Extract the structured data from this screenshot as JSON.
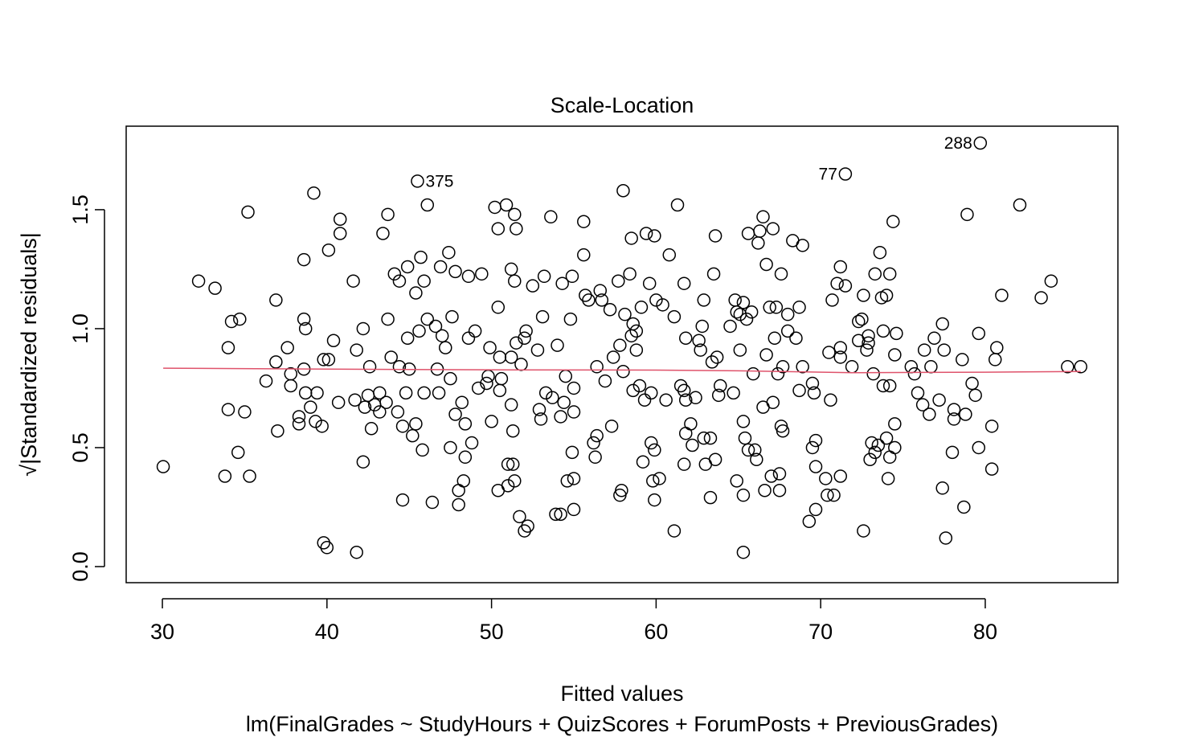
{
  "chart_data": {
    "type": "scatter",
    "title": "Scale-Location",
    "xlabel": "Fitted values",
    "ylabel": "√|Standardized residuals|",
    "subtitle": "lm(FinalGrades ~ StudyHours + QuizScores + ForumPosts + PreviousGrades)",
    "xlim": [
      27.8,
      88.06
    ],
    "ylim": [
      -0.0676,
      1.851
    ],
    "xticks": [
      30,
      40,
      50,
      60,
      70,
      80
    ],
    "yticks": [
      {
        "value": 0,
        "label": "0.0"
      },
      0.5,
      {
        "value": 1,
        "label": "1.0"
      },
      1.5
    ],
    "color": "#000000",
    "x": [
      30.05,
      32.2,
      33.2,
      33.8,
      34.0,
      34.0,
      34.2,
      34.6,
      34.7,
      35.0,
      35.2,
      35.3,
      36.3,
      36.9,
      37.0,
      36.9,
      37.6,
      37.8,
      37.8,
      38.3,
      38.3,
      38.6,
      38.6,
      38.7,
      38.6,
      38.7,
      39.0,
      39.2,
      39.3,
      39.4,
      39.7,
      39.8,
      39.8,
      40.0,
      40.1,
      40.1,
      40.4,
      40.8,
      40.8,
      40.7,
      41.6,
      41.8,
      41.8,
      41.7,
      42.2,
      42.2,
      42.3,
      42.6,
      42.5,
      42.7,
      42.9,
      43.2,
      43.2,
      43.4,
      43.6,
      43.7,
      43.7,
      43.9,
      44.1,
      44.4,
      44.3,
      44.4,
      44.6,
      44.6,
      44.8,
      44.9,
      44.9,
      45.0,
      45.2,
      45.4,
      45.5,
      45.4,
      45.6,
      45.7,
      45.8,
      45.9,
      46.1,
      46.1,
      45.9,
      46.6,
      46.4,
      46.7,
      46.8,
      46.9,
      47.0,
      47.2,
      47.4,
      47.5,
      47.5,
      47.6,
      47.8,
      47.8,
      48.0,
      48.0,
      48.2,
      48.3,
      48.4,
      48.4,
      48.6,
      48.6,
      48.8,
      49.0,
      49.2,
      49.4,
      49.7,
      49.8,
      49.9,
      50.0,
      50.2,
      50.4,
      50.4,
      50.4,
      50.5,
      50.5,
      50.6,
      50.9,
      51.0,
      51.0,
      51.2,
      51.2,
      51.2,
      51.3,
      51.3,
      51.4,
      51.5,
      51.4,
      51.4,
      51.5,
      51.7,
      51.8,
      52.0,
      52.0,
      52.1,
      52.2,
      52.5,
      52.8,
      52.9,
      53.0,
      53.1,
      53.2,
      53.3,
      53.6,
      53.7,
      53.9,
      54.0,
      54.2,
      54.2,
      54.3,
      54.4,
      54.5,
      54.6,
      54.8,
      54.9,
      55.0,
      55.0,
      55.0,
      55.0,
      54.9,
      55.6,
      55.6,
      55.7,
      55.9,
      56.2,
      56.3,
      56.4,
      56.4,
      56.6,
      56.7,
      56.9,
      57.2,
      57.3,
      57.4,
      57.7,
      57.8,
      57.8,
      57.9,
      58.0,
      58.0,
      58.1,
      58.4,
      58.5,
      58.5,
      58.6,
      58.6,
      58.8,
      58.8,
      59.0,
      59.1,
      59.2,
      59.3,
      59.4,
      59.6,
      59.7,
      59.7,
      59.8,
      59.9,
      59.9,
      59.9,
      60.0,
      60.2,
      60.4,
      60.6,
      60.8,
      61.1,
      61.1,
      61.3,
      61.5,
      61.7,
      61.7,
      61.7,
      61.8,
      61.8,
      61.8,
      62.1,
      62.2,
      62.4,
      62.6,
      62.7,
      62.8,
      62.9,
      62.9,
      63.0,
      63.3,
      63.3,
      63.4,
      63.5,
      63.6,
      63.6,
      63.7,
      63.8,
      63.9,
      64.5,
      64.7,
      64.9,
      64.8,
      64.9,
      65.1,
      65.1,
      65.3,
      65.3,
      65.3,
      65.3,
      65.4,
      65.6,
      65.5,
      65.6,
      65.8,
      65.9,
      66.1,
      66.0,
      66.3,
      66.2,
      66.5,
      66.5,
      66.6,
      66.7,
      66.7,
      66.9,
      67.0,
      67.1,
      67.1,
      67.2,
      67.3,
      67.5,
      67.4,
      67.5,
      67.6,
      67.6,
      67.7,
      67.7,
      68.0,
      68.0,
      68.3,
      68.5,
      68.7,
      68.7,
      68.9,
      68.9,
      69.3,
      69.5,
      69.5,
      69.6,
      69.7,
      69.7,
      69.7,
      70.3,
      70.4,
      70.5,
      70.6,
      70.7,
      70.8,
      71.0,
      71.2,
      71.2,
      71.2,
      71.2,
      71.5,
      71.5,
      71.9,
      72.3,
      72.3,
      72.5,
      72.6,
      72.6,
      72.8,
      72.9,
      72.9,
      73.0,
      73.1,
      73.2,
      73.3,
      73.3,
      73.5,
      73.6,
      73.7,
      73.8,
      73.8,
      74.0,
      74.0,
      74.1,
      74.2,
      74.2,
      74.2,
      74.4,
      74.5,
      74.5,
      74.5,
      74.6,
      75.5,
      75.7,
      75.9,
      76.2,
      76.3,
      76.7,
      76.6,
      76.9,
      77.2,
      77.4,
      77.4,
      77.5,
      77.6,
      78.0,
      78.1,
      78.1,
      78.6,
      78.7,
      78.8,
      78.9,
      79.2,
      79.4,
      79.6,
      79.6,
      79.7,
      80.4,
      80.4,
      80.6,
      80.7,
      81.0,
      82.1,
      83.4,
      84.0,
      85.0,
      85.8
    ],
    "values": [
      0.42,
      1.2,
      1.17,
      0.38,
      0.92,
      0.66,
      1.03,
      0.48,
      1.04,
      0.65,
      1.49,
      0.38,
      0.78,
      1.12,
      0.57,
      0.86,
      0.92,
      0.81,
      0.76,
      0.6,
      0.63,
      1.29,
      1.04,
      1.0,
      0.83,
      0.73,
      0.67,
      1.57,
      0.61,
      0.73,
      0.59,
      0.1,
      0.87,
      0.08,
      1.33,
      0.87,
      0.95,
      1.46,
      1.4,
      0.69,
      1.2,
      0.91,
      0.06,
      0.7,
      1.0,
      0.44,
      0.67,
      0.84,
      0.72,
      0.58,
      0.68,
      0.65,
      0.73,
      1.4,
      0.69,
      1.48,
      1.04,
      0.88,
      1.23,
      1.2,
      0.65,
      0.84,
      0.28,
      0.59,
      0.73,
      1.26,
      0.96,
      0.83,
      0.55,
      1.15,
      1.62,
      0.6,
      0.99,
      1.3,
      0.49,
      1.2,
      1.04,
      1.52,
      0.73,
      1.01,
      0.27,
      0.83,
      0.73,
      1.26,
      0.97,
      0.92,
      1.32,
      0.79,
      0.5,
      1.05,
      0.64,
      1.24,
      0.32,
      0.26,
      0.69,
      0.36,
      0.46,
      0.6,
      0.96,
      1.22,
      0.52,
      0.99,
      0.75,
      1.23,
      0.77,
      0.8,
      0.92,
      0.61,
      1.51,
      0.32,
      1.42,
      1.09,
      0.88,
      0.74,
      0.79,
      1.52,
      0.43,
      0.34,
      0.88,
      1.25,
      0.68,
      0.43,
      0.57,
      1.48,
      1.42,
      1.2,
      0.36,
      0.94,
      0.21,
      0.85,
      0.96,
      0.15,
      0.99,
      0.17,
      1.18,
      0.91,
      0.66,
      0.62,
      1.05,
      1.22,
      0.73,
      1.47,
      0.71,
      0.22,
      0.93,
      0.22,
      0.63,
      1.19,
      0.69,
      0.8,
      0.36,
      1.04,
      1.22,
      0.75,
      0.65,
      0.37,
      0.24,
      0.48,
      1.45,
      1.31,
      1.14,
      1.12,
      0.52,
      0.46,
      0.84,
      0.55,
      1.16,
      1.12,
      0.78,
      1.08,
      0.59,
      0.88,
      1.2,
      0.93,
      0.3,
      0.32,
      0.82,
      1.58,
      1.06,
      1.23,
      1.38,
      0.97,
      1.02,
      0.74,
      0.91,
      0.99,
      0.76,
      1.09,
      0.44,
      0.7,
      1.4,
      1.19,
      0.52,
      0.73,
      0.36,
      0.28,
      0.49,
      1.39,
      1.12,
      0.37,
      1.1,
      0.7,
      1.31,
      1.05,
      0.15,
      1.52,
      0.76,
      0.74,
      1.19,
      0.43,
      0.56,
      0.96,
      0.7,
      0.6,
      0.51,
      0.71,
      0.95,
      0.91,
      1.01,
      1.12,
      0.54,
      0.43,
      0.29,
      0.54,
      0.86,
      1.23,
      1.39,
      0.45,
      0.88,
      0.72,
      0.76,
      1.01,
      0.73,
      0.36,
      1.12,
      1.07,
      0.91,
      1.06,
      0.61,
      0.06,
      0.3,
      1.11,
      0.54,
      0.49,
      1.04,
      1.4,
      1.07,
      0.81,
      0.45,
      0.49,
      1.41,
      1.36,
      1.47,
      0.67,
      0.32,
      0.89,
      1.27,
      1.09,
      0.38,
      0.69,
      1.42,
      0.96,
      1.09,
      0.32,
      0.81,
      0.39,
      0.59,
      1.23,
      0.84,
      0.57,
      0.99,
      1.06,
      1.37,
      0.96,
      1.09,
      0.74,
      1.35,
      0.84,
      0.19,
      0.5,
      0.77,
      0.73,
      0.24,
      0.53,
      0.42,
      0.37,
      0.3,
      0.9,
      0.7,
      1.12,
      0.3,
      1.19,
      0.92,
      1.26,
      0.38,
      0.88,
      1.65,
      1.18,
      0.84,
      1.03,
      0.95,
      1.04,
      0.15,
      1.14,
      0.91,
      0.94,
      0.97,
      0.45,
      0.52,
      0.81,
      1.23,
      0.48,
      0.51,
      1.32,
      1.13,
      0.99,
      0.76,
      1.14,
      0.54,
      0.37,
      0.46,
      0.76,
      1.23,
      1.45,
      0.89,
      0.6,
      0.5,
      0.98,
      0.84,
      0.81,
      0.73,
      0.68,
      0.91,
      0.84,
      0.64,
      0.96,
      0.7,
      0.33,
      1.02,
      0.91,
      0.12,
      0.48,
      0.66,
      0.62,
      0.87,
      0.25,
      0.64,
      1.48,
      0.77,
      0.72,
      0.98,
      0.5,
      1.78,
      0.41,
      0.59,
      0.87,
      0.92,
      1.14,
      1.52,
      1.13,
      1.2,
      0.84,
      0.84
    ],
    "annotations": [
      {
        "text": "375",
        "x": 45.5,
        "y": 1.62,
        "side": "right"
      },
      {
        "text": "77",
        "x": 71.5,
        "y": 1.65,
        "side": "left"
      },
      {
        "text": "288",
        "x": 79.7,
        "y": 1.78,
        "side": "left"
      }
    ],
    "smooth": {
      "color": "#DF536B",
      "x": [
        30.05,
        40,
        50,
        60,
        65,
        72,
        80,
        85.8
      ],
      "values": [
        0.834,
        0.83,
        0.827,
        0.826,
        0.823,
        0.815,
        0.817,
        0.82
      ]
    }
  }
}
